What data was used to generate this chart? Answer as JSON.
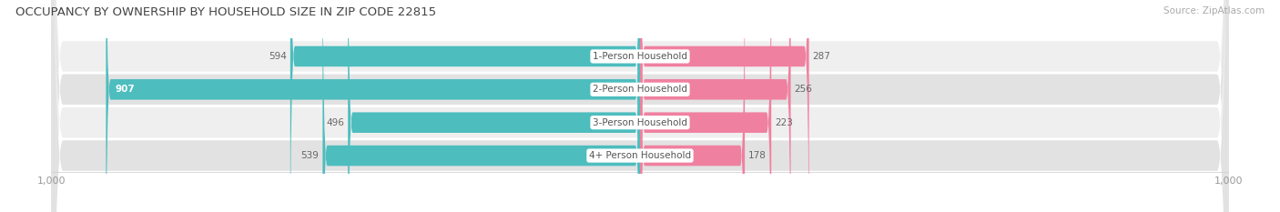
{
  "title": "OCCUPANCY BY OWNERSHIP BY HOUSEHOLD SIZE IN ZIP CODE 22815",
  "source": "Source: ZipAtlas.com",
  "categories": [
    "1-Person Household",
    "2-Person Household",
    "3-Person Household",
    "4+ Person Household"
  ],
  "owner_values": [
    594,
    907,
    496,
    539
  ],
  "renter_values": [
    287,
    256,
    223,
    178
  ],
  "owner_color": "#4dbdbe",
  "renter_color": "#f080a0",
  "row_bg_even": "#efefef",
  "row_bg_odd": "#e2e2e2",
  "axis_max": 1000,
  "title_fontsize": 9.5,
  "label_fontsize": 7.5,
  "tick_fontsize": 8,
  "legend_fontsize": 8,
  "source_fontsize": 7.5,
  "value_color_dark": "#666666",
  "value_color_white": "#ffffff",
  "cat_label_color": "#555555",
  "background_color": "#ffffff"
}
